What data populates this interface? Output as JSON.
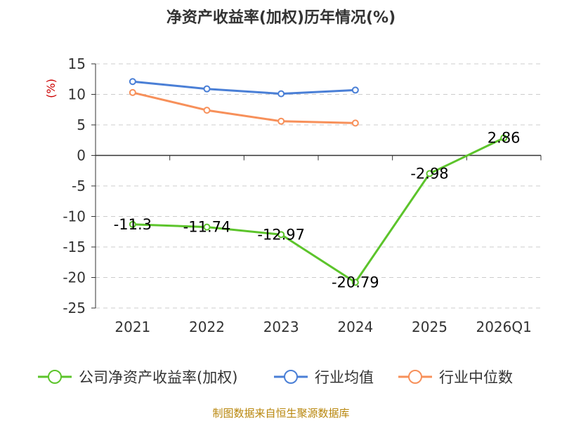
{
  "chart_data": {
    "type": "line",
    "title": "净资产收益率(加权)历年情况(%)",
    "y_unit": "(%)",
    "categories": [
      "2021",
      "2022",
      "2023",
      "2024",
      "2025",
      "2026Q1"
    ],
    "y_ticks": [
      15,
      10,
      5,
      0,
      -5,
      -10,
      -15,
      -20,
      -25
    ],
    "ylim": [
      -25,
      15
    ],
    "grid": true,
    "legend_position": "bottom",
    "series": [
      {
        "name": "公司净资产收益率(加权)",
        "color": "#5cc42b",
        "values": [
          -11.3,
          -11.74,
          -12.97,
          -20.79,
          -2.98,
          2.86
        ],
        "labels": [
          "-11.3",
          "-11.74",
          "-12.97",
          "-20.79",
          "-2.98",
          "2.86"
        ]
      },
      {
        "name": "行业均值",
        "color": "#4a7fd6",
        "values": [
          12.1,
          10.9,
          10.1,
          10.7,
          null,
          null
        ]
      },
      {
        "name": "行业中位数",
        "color": "#f7905a",
        "values": [
          10.3,
          7.4,
          5.6,
          5.3,
          null,
          null
        ]
      }
    ],
    "source": "制图数据来自恒生聚源数据库"
  }
}
